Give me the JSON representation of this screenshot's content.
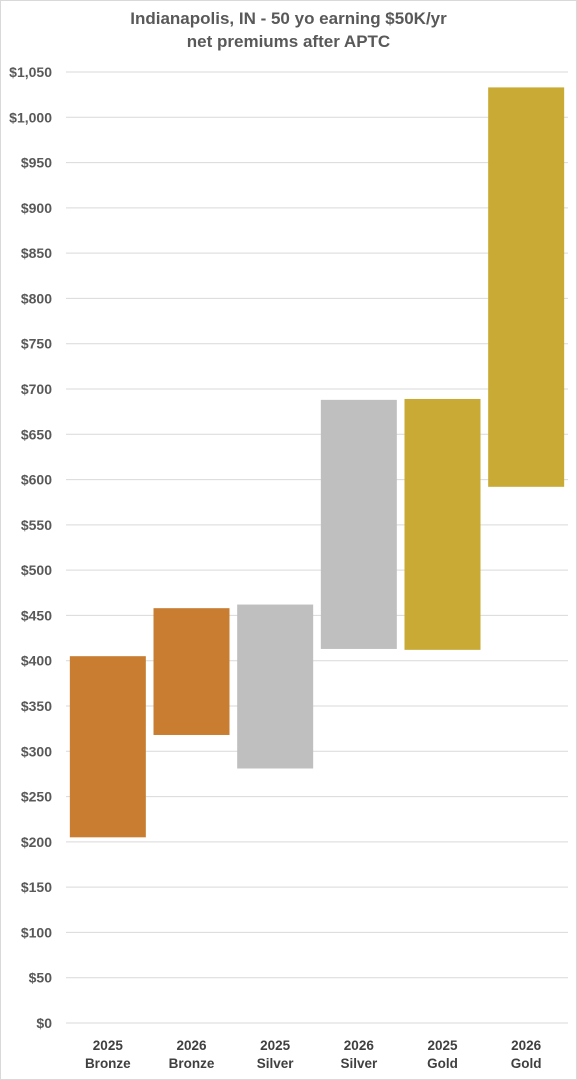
{
  "chart_data": {
    "type": "bar",
    "subtype": "floating-range",
    "title_lines": [
      "Indianapolis, IN - 50 yo earning $50K/yr",
      "net premiums after APTC"
    ],
    "categories": [
      [
        "2025",
        "Bronze"
      ],
      [
        "2026",
        "Bronze"
      ],
      [
        "2025",
        "Silver"
      ],
      [
        "2026",
        "Silver"
      ],
      [
        "2025",
        "Gold"
      ],
      [
        "2026",
        "Gold"
      ]
    ],
    "ranges": [
      {
        "low": 205,
        "high": 405
      },
      {
        "low": 318,
        "high": 458
      },
      {
        "low": 281,
        "high": 462
      },
      {
        "low": 413,
        "high": 688
      },
      {
        "low": 412,
        "high": 689
      },
      {
        "low": 592,
        "high": 1033
      }
    ],
    "colors": [
      "#c97d31",
      "#c97d31",
      "#bfbfbf",
      "#bfbfbf",
      "#c9aa35",
      "#c9aa35"
    ],
    "ylim": [
      0,
      1050
    ],
    "ytick_step": 50,
    "ytick_labels": [
      "$0",
      "$50",
      "$100",
      "$150",
      "$200",
      "$250",
      "$300",
      "$350",
      "$400",
      "$450",
      "$500",
      "$550",
      "$600",
      "$650",
      "$700",
      "$750",
      "$800",
      "$850",
      "$900",
      "$950",
      "$1,000",
      "$1,050"
    ],
    "xlabel": "",
    "ylabel": "",
    "grid": true,
    "legend": "none"
  }
}
